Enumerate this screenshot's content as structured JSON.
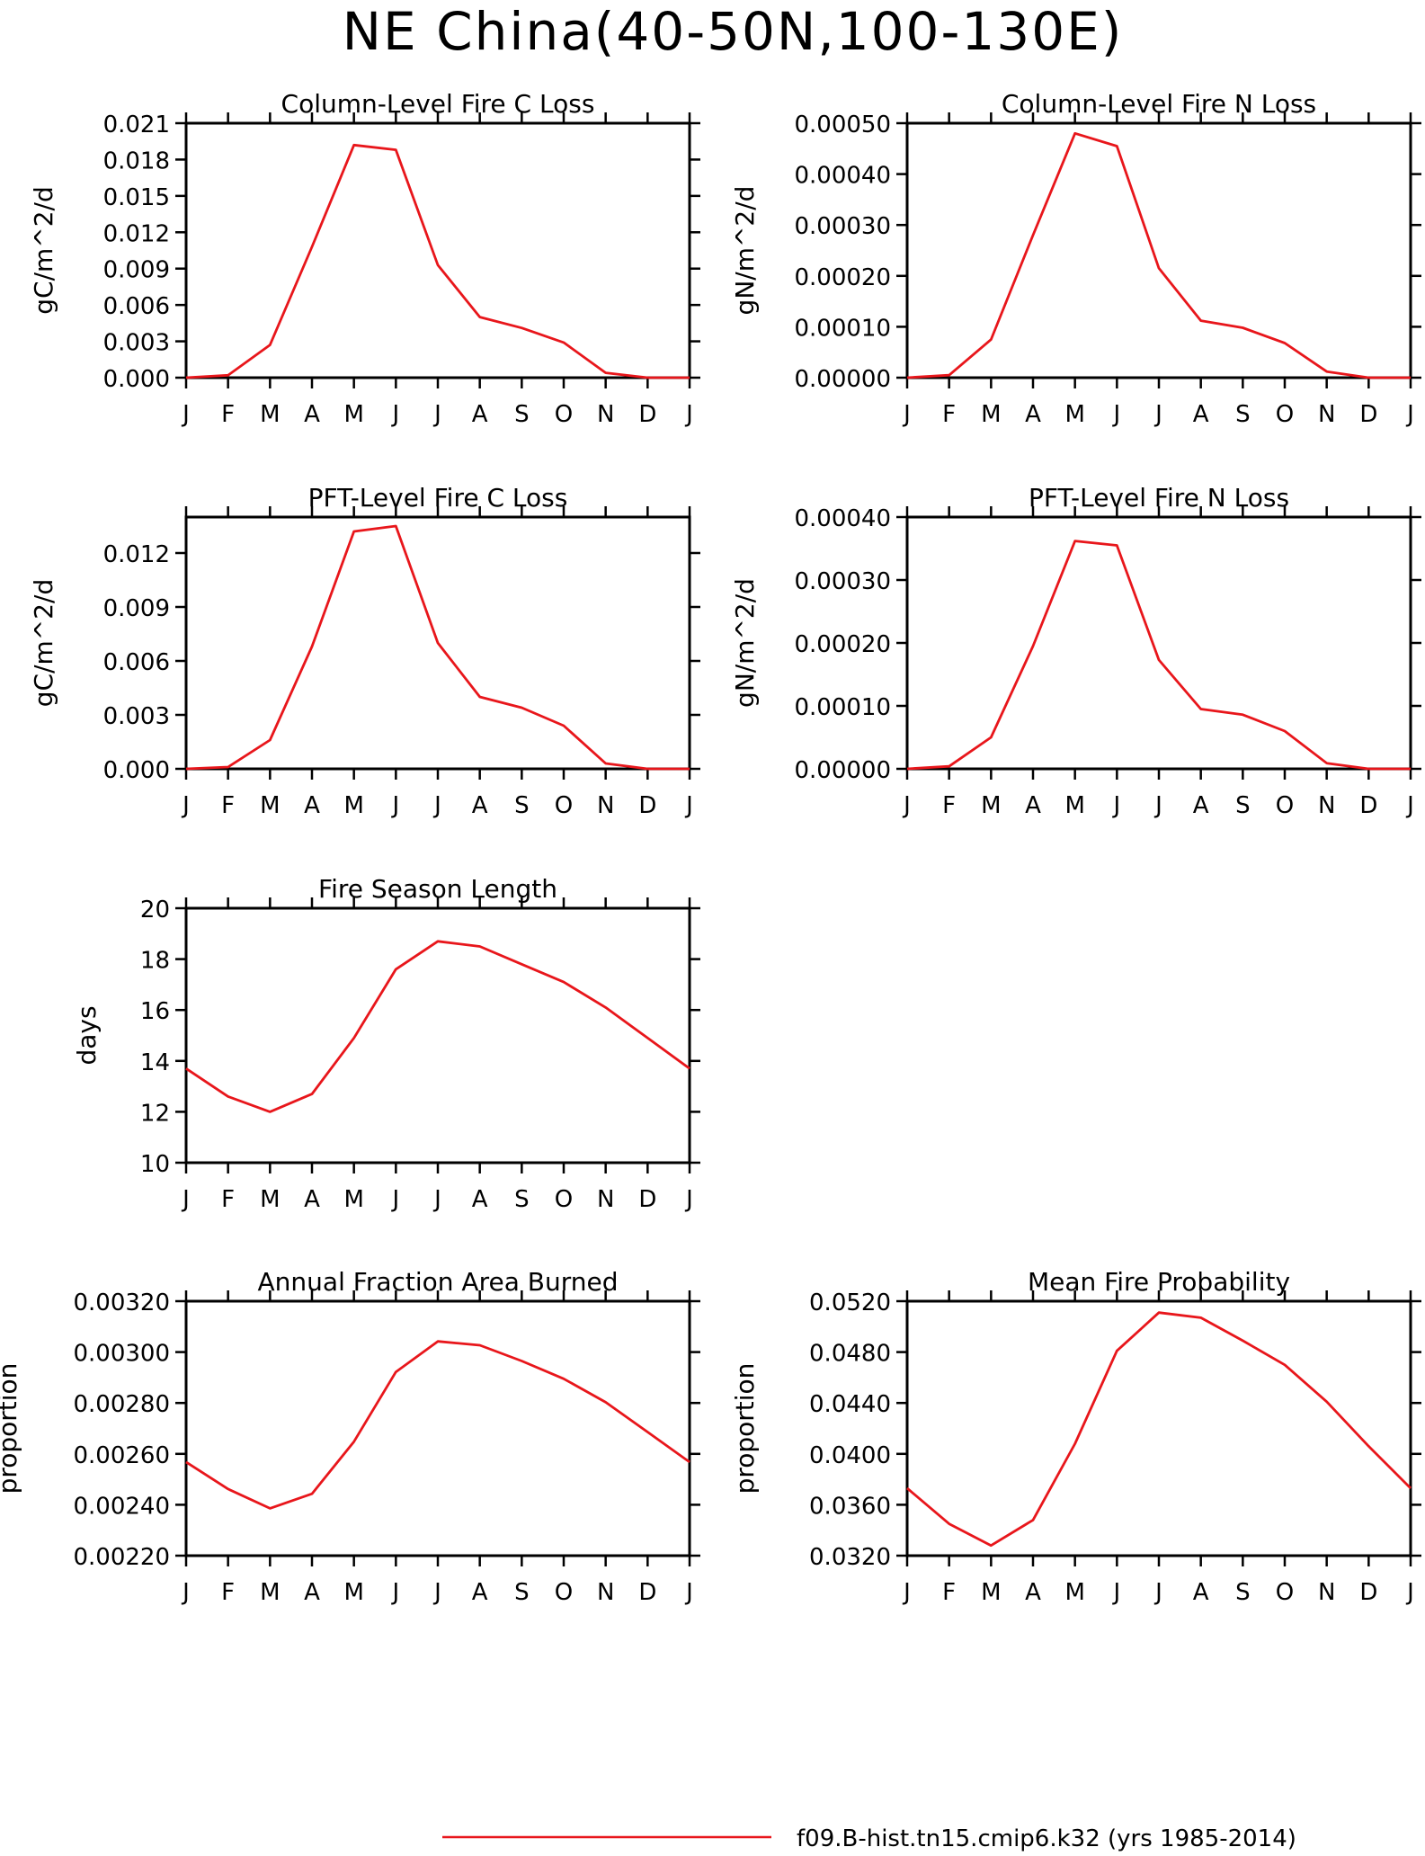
{
  "figure": {
    "title": "NE China(40-50N,100-130E)",
    "line_color": "#e8161b",
    "legend": {
      "label": "f09.B-hist.tn15.cmip6.k32 (yrs 1985-2014)"
    }
  },
  "chart_data": [
    {
      "type": "line",
      "title": "Column-Level Fire C Loss",
      "ylabel": "gC/m^2/d",
      "xlabel": "",
      "categories": [
        "J",
        "F",
        "M",
        "A",
        "M",
        "J",
        "J",
        "A",
        "S",
        "O",
        "N",
        "D",
        "J"
      ],
      "ylim": [
        0,
        0.021
      ],
      "yticks": [
        "0.000",
        "0.003",
        "0.006",
        "0.009",
        "0.012",
        "0.015",
        "0.018",
        "0.021"
      ],
      "series": [
        {
          "values": [
            0.0,
            0.0002,
            0.0027,
            0.0108,
            0.0192,
            0.0188,
            0.0093,
            0.005,
            0.0041,
            0.0029,
            0.0004,
            0.0,
            0.0
          ]
        }
      ]
    },
    {
      "type": "line",
      "title": "Column-Level Fire N Loss",
      "ylabel": "gN/m^2/d",
      "xlabel": "",
      "categories": [
        "J",
        "F",
        "M",
        "A",
        "M",
        "J",
        "J",
        "A",
        "S",
        "O",
        "N",
        "D",
        "J"
      ],
      "ylim": [
        0,
        0.0005
      ],
      "yticks": [
        "0.00000",
        "0.00010",
        "0.00020",
        "0.00030",
        "0.00040",
        "0.00050"
      ],
      "series": [
        {
          "values": [
            0.0,
            5e-06,
            7.5e-05,
            0.00028,
            0.00048,
            0.000455,
            0.000215,
            0.000112,
            9.8e-05,
            6.8e-05,
            1.2e-05,
            0.0,
            0.0
          ]
        }
      ]
    },
    {
      "type": "line",
      "title": "PFT-Level Fire C Loss",
      "ylabel": "gC/m^2/d",
      "xlabel": "",
      "categories": [
        "J",
        "F",
        "M",
        "A",
        "M",
        "J",
        "J",
        "A",
        "S",
        "O",
        "N",
        "D",
        "J"
      ],
      "ylim": [
        0,
        0.014
      ],
      "yticks": [
        "0.000",
        "0.003",
        "0.006",
        "0.009",
        "0.012"
      ],
      "series": [
        {
          "values": [
            0.0,
            0.0001,
            0.0016,
            0.0068,
            0.0132,
            0.0135,
            0.007,
            0.004,
            0.0034,
            0.0024,
            0.0003,
            0.0,
            0.0
          ]
        }
      ]
    },
    {
      "type": "line",
      "title": "PFT-Level Fire N Loss",
      "ylabel": "gN/m^2/d",
      "xlabel": "",
      "categories": [
        "J",
        "F",
        "M",
        "A",
        "M",
        "J",
        "J",
        "A",
        "S",
        "O",
        "N",
        "D",
        "J"
      ],
      "ylim": [
        0,
        0.0004
      ],
      "yticks": [
        "0.00000",
        "0.00010",
        "0.00020",
        "0.00030",
        "0.00040"
      ],
      "series": [
        {
          "values": [
            0.0,
            4e-06,
            5e-05,
            0.000195,
            0.000362,
            0.000355,
            0.000173,
            9.5e-05,
            8.6e-05,
            6e-05,
            9e-06,
            0.0,
            0.0
          ]
        }
      ]
    },
    {
      "type": "line",
      "title": "Fire Season Length",
      "ylabel": "days",
      "xlabel": "",
      "categories": [
        "J",
        "F",
        "M",
        "A",
        "M",
        "J",
        "J",
        "A",
        "S",
        "O",
        "N",
        "D",
        "J"
      ],
      "ylim": [
        10,
        20
      ],
      "yticks": [
        "10",
        "12",
        "14",
        "16",
        "18",
        "20"
      ],
      "series": [
        {
          "values": [
            13.7,
            12.6,
            12.0,
            12.7,
            14.9,
            17.6,
            18.7,
            18.5,
            17.8,
            17.1,
            16.1,
            14.9,
            13.7
          ]
        }
      ]
    },
    {
      "type": "line",
      "title": "Annual Fraction Area Burned",
      "ylabel": "proportion",
      "xlabel": "",
      "categories": [
        "J",
        "F",
        "M",
        "A",
        "M",
        "J",
        "J",
        "A",
        "S",
        "O",
        "N",
        "D",
        "J"
      ],
      "ylim": [
        0.0022,
        0.0032
      ],
      "yticks": [
        "0.00220",
        "0.00240",
        "0.00260",
        "0.00280",
        "0.00300",
        "0.00320"
      ],
      "series": [
        {
          "values": [
            0.002568,
            0.002462,
            0.002386,
            0.002443,
            0.002648,
            0.002922,
            0.003042,
            0.003027,
            0.002965,
            0.002895,
            0.002803,
            0.002686,
            0.002568
          ]
        }
      ]
    },
    {
      "type": "line",
      "title": "Mean Fire Probability",
      "ylabel": "proportion",
      "xlabel": "",
      "categories": [
        "J",
        "F",
        "M",
        "A",
        "M",
        "J",
        "J",
        "A",
        "S",
        "O",
        "N",
        "D",
        "J"
      ],
      "ylim": [
        0.032,
        0.052
      ],
      "yticks": [
        "0.0320",
        "0.0360",
        "0.0400",
        "0.0440",
        "0.0480",
        "0.0520"
      ],
      "series": [
        {
          "values": [
            0.0373,
            0.0345,
            0.0328,
            0.0348,
            0.0408,
            0.0481,
            0.0511,
            0.0507,
            0.0489,
            0.047,
            0.0441,
            0.0406,
            0.0373
          ]
        }
      ]
    }
  ]
}
